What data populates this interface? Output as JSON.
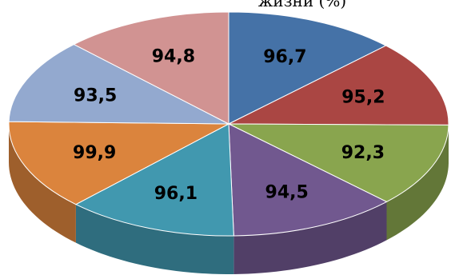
{
  "chart_data": {
    "type": "pie",
    "title": "жизни (%)",
    "values": [
      96.7,
      95.2,
      92.3,
      94.5,
      96.1,
      99.9,
      93.5,
      94.8
    ],
    "data_labels": [
      "96,7",
      "95,2",
      "92,3",
      "94,5",
      "96,1",
      "99,9",
      "93,5",
      "94,8"
    ],
    "colors": [
      "#4572A7",
      "#AA4643",
      "#89A54E",
      "#71588F",
      "#4198AF",
      "#DB843D",
      "#93A9CF",
      "#D19392"
    ],
    "legend": "none",
    "style": "3d-exploded-none"
  }
}
